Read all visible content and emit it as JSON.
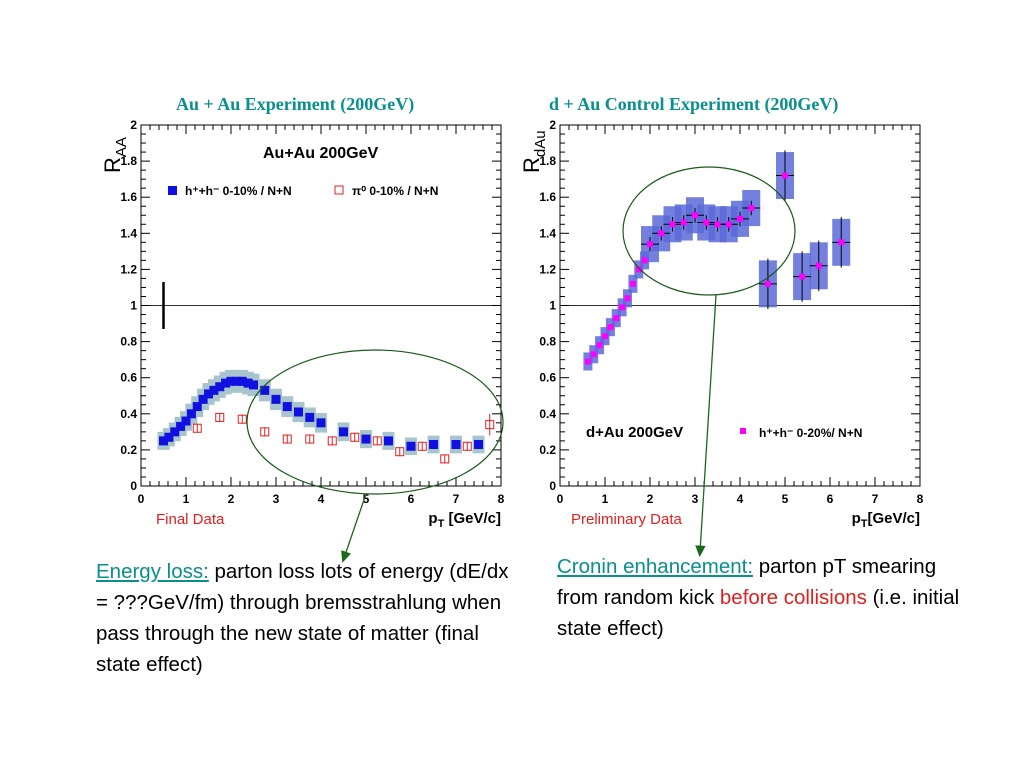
{
  "slide": {
    "left_title": "Au + Au Experiment (200GeV)",
    "right_title": "d + Au Control Experiment (200GeV)",
    "left_caption": "Final Data",
    "right_caption": "Preliminary Data",
    "left_note": {
      "lead": "Energy loss:",
      "text": " parton loss lots of energy (dE/dx = ???GeV/fm) through bremsstrahlung when pass through the new state of matter (final state effect)"
    },
    "right_note": {
      "lead": "Cronin enhancement:",
      "text1": " parton pT smearing from random kick ",
      "red": "before collisions",
      "text2": " (i.e. initial state effect)"
    },
    "colors": {
      "teal": "#0a8f8f",
      "red_text": "#e02020",
      "blue_marker": "#1010e0",
      "magenta_marker": "#ff00ff",
      "red_marker": "#e02020",
      "band_aa": "#a8c4cc",
      "band_dau": "#5a6ad8",
      "ellipse": "#1a5a1a",
      "arrow": "#1a6a1a"
    }
  },
  "chart_data": [
    {
      "type": "scatter",
      "panel_text": "Au+Au 200GeV",
      "ylabel_main": "R",
      "ylabel_sub": "AA",
      "xlabel_main": "p",
      "xlabel_sub": "T",
      "xlabel_unit": " [GeV/c]",
      "xlim": [
        0,
        8
      ],
      "ylim": [
        0,
        2
      ],
      "xticks": [
        "0",
        "1",
        "2",
        "3",
        "4",
        "5",
        "6",
        "7",
        "8"
      ],
      "yticks": [
        "0",
        "0.2",
        "0.4",
        "0.6",
        "0.8",
        "1",
        "1.2",
        "1.4",
        "1.6",
        "1.8",
        "2"
      ],
      "reference_line_y": 1,
      "grid": false,
      "legend_position": "top",
      "series": [
        {
          "name": "h⁺+h⁻ 0-10% / N+N",
          "marker": "filled-square",
          "x": [
            0.5,
            0.62,
            0.75,
            0.88,
            1.0,
            1.12,
            1.25,
            1.38,
            1.5,
            1.62,
            1.75,
            1.88,
            2.0,
            2.12,
            2.25,
            2.38,
            2.5,
            2.75,
            3.0,
            3.25,
            3.5,
            3.75,
            4.0,
            4.5,
            5.0,
            5.5,
            6.0,
            6.5,
            7.0,
            7.5
          ],
          "y": [
            0.25,
            0.27,
            0.3,
            0.33,
            0.36,
            0.4,
            0.44,
            0.48,
            0.51,
            0.53,
            0.55,
            0.57,
            0.58,
            0.58,
            0.58,
            0.57,
            0.56,
            0.53,
            0.48,
            0.44,
            0.41,
            0.38,
            0.35,
            0.3,
            0.26,
            0.25,
            0.22,
            0.23,
            0.23,
            0.23
          ]
        },
        {
          "name": "π⁰ 0-10% / N+N",
          "marker": "open-square",
          "x": [
            1.25,
            1.75,
            2.25,
            2.75,
            3.25,
            3.75,
            4.25,
            4.75,
            5.25,
            5.75,
            6.25,
            6.75,
            7.25,
            7.75
          ],
          "y": [
            0.32,
            0.38,
            0.37,
            0.3,
            0.26,
            0.26,
            0.25,
            0.27,
            0.25,
            0.19,
            0.22,
            0.15,
            0.22,
            0.34
          ]
        }
      ]
    },
    {
      "type": "scatter",
      "panel_text": "d+Au 200GeV",
      "ylabel_main": "R",
      "ylabel_sub": "dAu",
      "xlabel_main": "p",
      "xlabel_sub": "T",
      "xlabel_unit": "[GeV/c]",
      "xlim": [
        0,
        8
      ],
      "ylim": [
        0,
        2
      ],
      "xticks": [
        "0",
        "1",
        "2",
        "3",
        "4",
        "5",
        "6",
        "7",
        "8"
      ],
      "yticks": [
        "0",
        "0.2",
        "0.4",
        "0.6",
        "0.8",
        "1",
        "1.2",
        "1.4",
        "1.6",
        "1.8",
        "2"
      ],
      "reference_line_y": 1,
      "grid": false,
      "legend_position": "bottom-right",
      "series": [
        {
          "name": "h⁺+h⁻ 0-20%/ N+N",
          "marker": "filled-square",
          "x": [
            0.62,
            0.75,
            0.88,
            1.0,
            1.12,
            1.25,
            1.38,
            1.5,
            1.62,
            1.75,
            1.88,
            2.0,
            2.25,
            2.5,
            2.75,
            3.0,
            3.25,
            3.5,
            3.75,
            4.0,
            4.25,
            4.62,
            5.0,
            5.38,
            5.75,
            6.25
          ],
          "y": [
            0.69,
            0.73,
            0.78,
            0.83,
            0.88,
            0.93,
            0.99,
            1.04,
            1.12,
            1.2,
            1.25,
            1.34,
            1.4,
            1.45,
            1.46,
            1.5,
            1.46,
            1.45,
            1.45,
            1.48,
            1.54,
            1.12,
            1.72,
            1.16,
            1.22,
            1.35
          ]
        }
      ]
    }
  ]
}
